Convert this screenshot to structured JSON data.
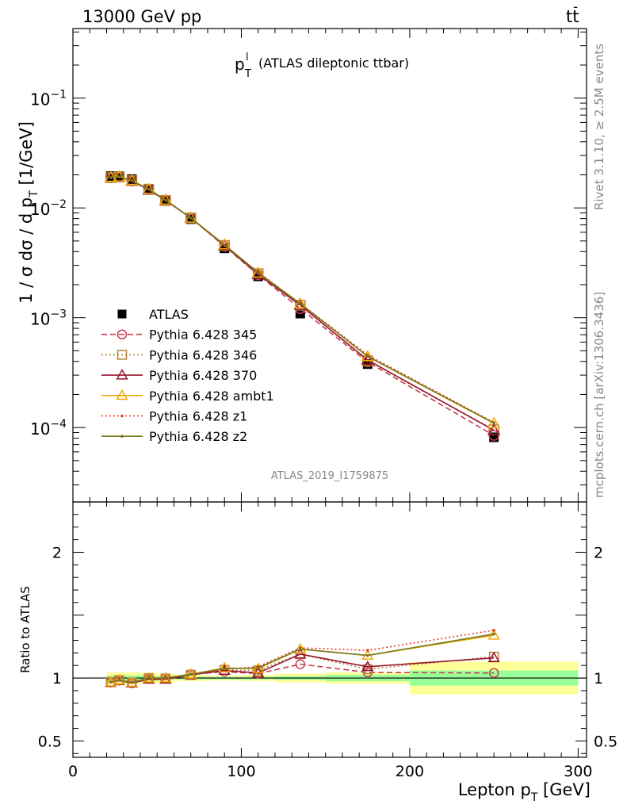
{
  "header": {
    "left": "13000 GeV pp",
    "right_main": "tt",
    "right_bar": "-"
  },
  "plot_title": {
    "p": "p",
    "sup": "l",
    "sub": "T",
    "rest": "(ATLAS dileptonic ttbar)"
  },
  "analysis_id": "ATLAS_2019_I1759875",
  "side_text": {
    "rivet": "Rivet 3.1.10, ≥ 2.5M events",
    "mcplots": "mcplots.cern.ch [arXiv:1306.3436]"
  },
  "axes": {
    "main_ylabel": {
      "pre": "1 / σ  dσ / d p",
      "sub": "T",
      "post": " [1/GeV]"
    },
    "ratio_ylabel": "Ratio to ATLAS",
    "xlabel": {
      "pre": "Lepton p",
      "sub": "T",
      "post": " [GeV]"
    },
    "x_ticks": [
      "0",
      "100",
      "200",
      "300"
    ],
    "main_y_ticks": [
      {
        "base": "10",
        "exp": "−1"
      },
      {
        "base": "10",
        "exp": "−2"
      },
      {
        "base": "10",
        "exp": "−3"
      },
      {
        "base": "10",
        "exp": "−4"
      }
    ],
    "ratio_y_ticks": [
      "2",
      "1",
      "0.5"
    ]
  },
  "chart_data": [
    {
      "type": "line",
      "y_scale": "log",
      "xlim": [
        0,
        305
      ],
      "ylim": [
        2.1e-05,
        0.43
      ],
      "x": [
        22.5,
        27.5,
        35,
        45,
        55,
        70,
        90,
        110,
        135,
        175,
        250
      ],
      "x_edges": [
        20,
        25,
        30,
        40,
        50,
        60,
        80,
        100,
        120,
        150,
        200,
        300
      ],
      "series": [
        {
          "name": "ATLAS",
          "color": "#000000",
          "marker": "square",
          "line": "none",
          "values": [
            0.0195,
            0.0195,
            0.0183,
            0.0148,
            0.0118,
            0.0079,
            0.00428,
            0.00238,
            0.00109,
            0.000378,
            8.15e-05
          ]
        },
        {
          "name": "Pythia 6.428 345",
          "color": "#c83c50",
          "marker": "circle-open",
          "line": "dashed",
          "values": [
            0.0188,
            0.0191,
            0.0176,
            0.0147,
            0.0118,
            0.0081,
            0.00448,
            0.00246,
            0.00121,
            0.000395,
            8.48e-05
          ]
        },
        {
          "name": "Pythia 6.428 346",
          "color": "#b4823c",
          "marker": "square-open",
          "line": "dotted",
          "values": [
            0.0189,
            0.0192,
            0.0177,
            0.0148,
            0.0117,
            0.0081,
            0.00455,
            0.00252,
            0.0013,
            0.000405,
            9.55e-05
          ]
        },
        {
          "name": "Pythia 6.428 370",
          "color": "#96142d",
          "marker": "triangle-open",
          "line": "solid",
          "values": [
            0.0188,
            0.0191,
            0.0176,
            0.0146,
            0.0117,
            0.0081,
            0.00454,
            0.00248,
            0.0013,
            0.000412,
            9.45e-05
          ]
        },
        {
          "name": "Pythia 6.428 ambt1",
          "color": "#f0aa00",
          "marker": "triangle-open",
          "line": "solid",
          "values": [
            0.0189,
            0.0192,
            0.0177,
            0.0148,
            0.0118,
            0.0081,
            0.00463,
            0.00256,
            0.00134,
            0.000443,
            0.000109
          ]
        },
        {
          "name": "Pythia 6.428 z1",
          "color": "#e03c1e",
          "marker": "dot",
          "line": "dotted",
          "values": [
            0.0189,
            0.0192,
            0.0177,
            0.0148,
            0.0118,
            0.0081,
            0.00458,
            0.0026,
            0.00135,
            0.000458,
            0.000111
          ]
        },
        {
          "name": "Pythia 6.428 z2",
          "color": "#78781e",
          "marker": "dot",
          "line": "solid",
          "values": [
            0.0189,
            0.0192,
            0.0177,
            0.0148,
            0.0118,
            0.0081,
            0.00461,
            0.00257,
            0.00134,
            0.000445,
            0.00011
          ]
        }
      ],
      "legend": "left"
    },
    {
      "type": "line",
      "xlim": [
        0,
        305
      ],
      "ylim": [
        0.37,
        2.4
      ],
      "reference": 1,
      "x": [
        22.5,
        27.5,
        35,
        45,
        55,
        70,
        90,
        110,
        135,
        175,
        250
      ],
      "bands": [
        {
          "x": [
            20,
            25,
            30,
            40,
            50,
            60,
            80,
            100,
            120,
            150,
            200,
            300
          ],
          "stat_sys_lo": [
            0.955,
            0.955,
            0.955,
            0.96,
            0.965,
            0.975,
            0.98,
            0.975,
            0.965,
            0.955,
            0.87
          ],
          "stat_sys_hi": [
            1.045,
            1.045,
            1.045,
            1.04,
            1.035,
            1.025,
            1.02,
            1.025,
            1.035,
            1.045,
            1.13
          ],
          "stat_lo": [
            0.98,
            0.98,
            0.98,
            0.98,
            0.985,
            0.99,
            0.99,
            0.99,
            0.985,
            0.975,
            0.94
          ],
          "stat_hi": [
            1.02,
            1.02,
            1.02,
            1.02,
            1.015,
            1.01,
            1.01,
            1.01,
            1.015,
            1.025,
            1.06
          ]
        }
      ],
      "series": [
        {
          "name": "Pythia 6.428 345",
          "color": "#c83c50",
          "values": [
            0.965,
            0.98,
            0.96,
            0.995,
            1.0,
            1.03,
            1.05,
            1.035,
            1.11,
            1.045,
            1.04
          ]
        },
        {
          "name": "Pythia 6.428 346",
          "color": "#b4823c",
          "values": [
            0.968,
            0.983,
            0.965,
            1.0,
            0.995,
            1.025,
            1.065,
            1.06,
            1.19,
            1.07,
            1.17
          ]
        },
        {
          "name": "Pythia 6.428 370",
          "color": "#96142d",
          "values": [
            0.965,
            0.98,
            0.96,
            0.99,
            0.99,
            1.025,
            1.06,
            1.04,
            1.19,
            1.09,
            1.16
          ]
        },
        {
          "name": "Pythia 6.428 ambt1",
          "color": "#f0aa00",
          "values": [
            0.968,
            0.983,
            0.965,
            1.0,
            1.0,
            1.03,
            1.08,
            1.075,
            1.23,
            1.18,
            1.34
          ]
        },
        {
          "name": "Pythia 6.428 z1",
          "color": "#e03c1e",
          "values": [
            0.968,
            0.983,
            0.965,
            1.0,
            1.0,
            1.03,
            1.07,
            1.09,
            1.24,
            1.22,
            1.38
          ]
        },
        {
          "name": "Pythia 6.428 z2",
          "color": "#78781e",
          "values": [
            0.968,
            0.983,
            0.965,
            1.0,
            1.0,
            1.03,
            1.075,
            1.08,
            1.23,
            1.18,
            1.35
          ]
        }
      ]
    }
  ]
}
